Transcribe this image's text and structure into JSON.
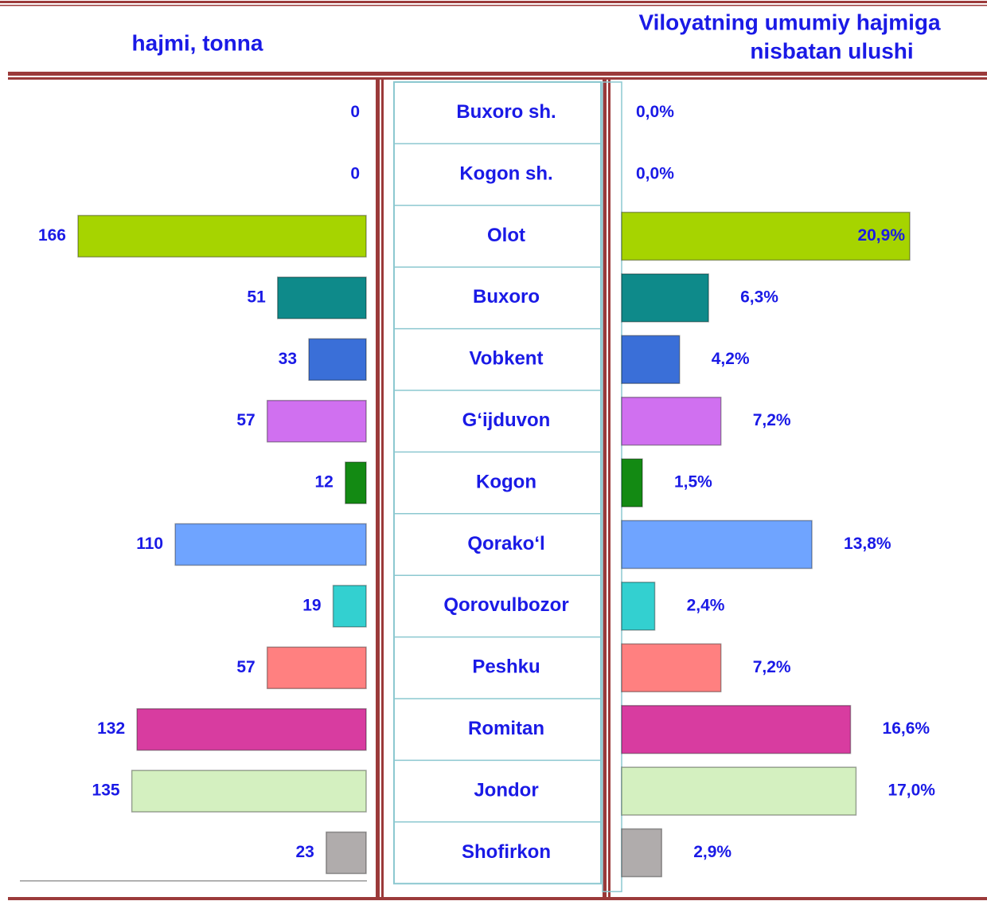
{
  "chart_data": {
    "type": "butterfly-bar",
    "left_title": "hajmi, tonna",
    "right_title": [
      "Viloyatning umumiy hajmiga",
      "nisbatan ulushi"
    ],
    "categories": [
      "Buxoro sh.",
      "Kogon sh.",
      "Olot",
      "Buxoro",
      "Vobkent",
      "G‘ijduvon",
      "Kogon",
      "Qorako‘l",
      "Qorovulbozor",
      "Peshku",
      "Romitan",
      "Jondor",
      "Shofirkon"
    ],
    "colors": [
      "#ffffff",
      "#ffffff",
      "#a6d400",
      "#0e8a8a",
      "#3a6fd8",
      "#d070f0",
      "#138a13",
      "#6fa4ff",
      "#33d0d0",
      "#ff8080",
      "#d83ca0",
      "#d4f0c0",
      "#b0acac"
    ],
    "series": [
      {
        "name": "hajmi, tonna",
        "values": [
          0,
          0,
          166,
          51,
          33,
          57,
          12,
          110,
          19,
          57,
          132,
          135,
          23
        ]
      },
      {
        "name": "Viloyatning umumiy hajmiga nisbatan ulushi",
        "values": [
          0.0,
          0.0,
          20.9,
          6.3,
          4.2,
          7.2,
          1.5,
          13.8,
          2.4,
          7.2,
          16.6,
          17.0,
          2.9
        ],
        "value_labels": [
          "0,0%",
          "0,0%",
          "20,9%",
          "6,3%",
          "4,2%",
          "7,2%",
          "1,5%",
          "13,8%",
          "2,4%",
          "7,2%",
          "16,6%",
          "17,0%",
          "2,9%"
        ]
      }
    ]
  }
}
